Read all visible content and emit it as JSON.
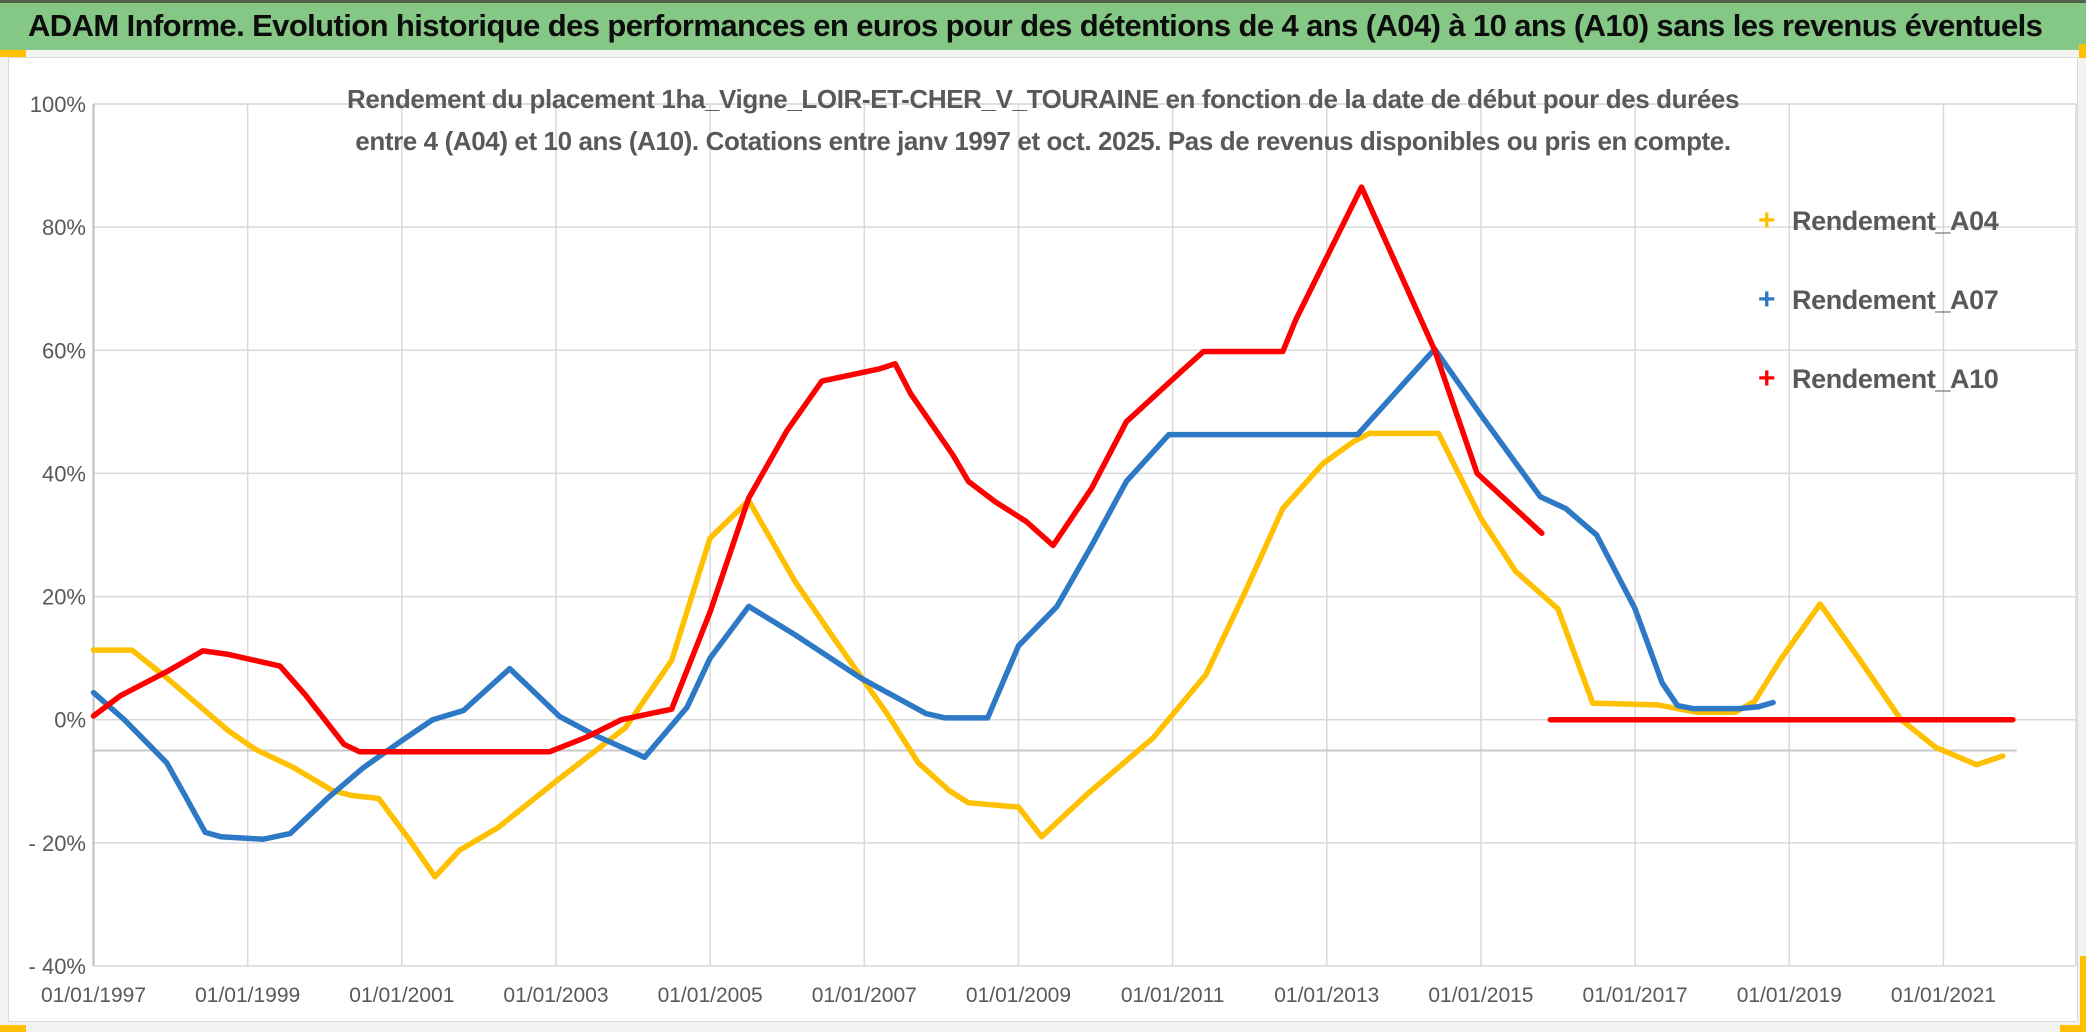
{
  "header": {
    "title": "ADAM Informe. Evolution historique des performances en euros pour des détentions de 4 ans (A04) à 10 ans (A10) sans les revenus éventuels"
  },
  "chart": {
    "title_line1": "Rendement du placement 1ha_Vigne_LOIR-ET-CHER_V_TOURAINE en fonction de la date de début pour des durées",
    "title_line2": "entre 4 (A04) et 10 ans (A10). Cotations entre janv 1997 et oct. 2025. Pas de revenus disponibles ou pris en compte."
  },
  "colors": {
    "header_bg": "#85c785",
    "accent_orange": "#ffc000",
    "grid": "#d9d9d9",
    "axis_line": "#bfbfbf",
    "baseline_extra": "#c9c9c9",
    "axis_text": "#595959",
    "title_text": "#595959",
    "a04": "#ffc000",
    "a07": "#2e79c6",
    "a10": "#ff0000"
  },
  "chart_data": {
    "type": "line",
    "title": "Rendement du placement 1ha_Vigne_LOIR-ET-CHER_V_TOURAINE en fonction de la date de début pour des durées entre 4 (A04) et 10 ans (A10). Cotations entre janv 1997 et oct. 2025. Pas de revenus disponibles ou pris en compte.",
    "xlabel": "",
    "ylabel": "",
    "grid": true,
    "legend_position": "right",
    "x_axis": {
      "range": [
        1997,
        2022.72
      ],
      "tick_years": [
        1997,
        1999,
        2001,
        2003,
        2005,
        2007,
        2009,
        2011,
        2013,
        2015,
        2017,
        2019,
        2021
      ],
      "tick_labels": [
        "01/01/1997",
        "01/01/1999",
        "01/01/2001",
        "01/01/2003",
        "01/01/2005",
        "01/01/2007",
        "01/01/2009",
        "01/01/2011",
        "01/01/2013",
        "01/01/2015",
        "01/01/2017",
        "01/01/2019",
        "01/01/2021"
      ]
    },
    "y_axis": {
      "range": [
        -40,
        100
      ],
      "tick_values": [
        100,
        80,
        60,
        40,
        20,
        0,
        -20,
        -40
      ],
      "tick_labels": [
        "100%",
        "80%",
        "60%",
        "40%",
        "20%",
        "0%",
        "- 20%",
        "- 40%"
      ],
      "extra_line_at": -5
    },
    "legend": [
      "Rendement_A04",
      "Rendement_A07",
      "Rendement_A10"
    ],
    "series": [
      {
        "name": "Rendement_A04",
        "color_key": "a04",
        "marker": "+",
        "points": [
          [
            1997.0,
            11.3
          ],
          [
            1997.5,
            11.3
          ],
          [
            1997.95,
            6.8
          ],
          [
            1998.35,
            2.5
          ],
          [
            1998.75,
            -1.8
          ],
          [
            1999.1,
            -4.8
          ],
          [
            1999.6,
            -7.8
          ],
          [
            2000.1,
            -11.5
          ],
          [
            2000.35,
            -12.3
          ],
          [
            2000.7,
            -12.8
          ],
          [
            2001.1,
            -19.5
          ],
          [
            2001.43,
            -25.5
          ],
          [
            2001.75,
            -21.2
          ],
          [
            2002.25,
            -17.5
          ],
          [
            2003.0,
            -10.0
          ],
          [
            2003.9,
            -1.3
          ],
          [
            2004.5,
            9.6
          ],
          [
            2005.0,
            29.5
          ],
          [
            2005.5,
            35.6
          ],
          [
            2006.1,
            22.5
          ],
          [
            2006.6,
            13.3
          ],
          [
            2007.3,
            0.9
          ],
          [
            2007.7,
            -7.0
          ],
          [
            2008.1,
            -11.5
          ],
          [
            2008.35,
            -13.5
          ],
          [
            2009.0,
            -14.2
          ],
          [
            2009.3,
            -19.0
          ],
          [
            2009.9,
            -12.0
          ],
          [
            2010.75,
            -2.9
          ],
          [
            2011.43,
            7.3
          ],
          [
            2011.95,
            21.0
          ],
          [
            2012.43,
            34.3
          ],
          [
            2012.95,
            41.6
          ],
          [
            2013.35,
            45.2
          ],
          [
            2013.55,
            46.5
          ],
          [
            2014.45,
            46.5
          ],
          [
            2015.0,
            32.7
          ],
          [
            2015.45,
            24.1
          ],
          [
            2016.0,
            18.0
          ],
          [
            2016.45,
            2.7
          ],
          [
            2017.3,
            2.4
          ],
          [
            2017.8,
            1.2
          ],
          [
            2018.3,
            1.2
          ],
          [
            2018.55,
            3.0
          ],
          [
            2018.9,
            10.0
          ],
          [
            2019.4,
            18.8
          ],
          [
            2019.9,
            10.0
          ],
          [
            2020.45,
            0.0
          ],
          [
            2020.9,
            -4.5
          ],
          [
            2021.43,
            -7.3
          ],
          [
            2021.77,
            -5.9
          ]
        ]
      },
      {
        "name": "Rendement_A07",
        "color_key": "a07",
        "marker": "+",
        "points": [
          [
            1997.0,
            4.4
          ],
          [
            1997.4,
            0.0
          ],
          [
            1997.95,
            -7.0
          ],
          [
            1998.2,
            -12.6
          ],
          [
            1998.45,
            -18.3
          ],
          [
            1998.65,
            -19.0
          ],
          [
            1999.2,
            -19.4
          ],
          [
            1999.55,
            -18.5
          ],
          [
            2000.05,
            -12.6
          ],
          [
            2000.5,
            -7.8
          ],
          [
            2001.0,
            -3.4
          ],
          [
            2001.4,
            0.0
          ],
          [
            2001.8,
            1.5
          ],
          [
            2002.4,
            8.3
          ],
          [
            2003.05,
            0.5
          ],
          [
            2003.5,
            -2.5
          ],
          [
            2004.15,
            -6.1
          ],
          [
            2004.7,
            2.0
          ],
          [
            2005.0,
            10.0
          ],
          [
            2005.5,
            18.4
          ],
          [
            2006.1,
            13.8
          ],
          [
            2006.95,
            6.8
          ],
          [
            2007.8,
            1.0
          ],
          [
            2008.05,
            0.3
          ],
          [
            2008.6,
            0.3
          ],
          [
            2009.0,
            12.0
          ],
          [
            2009.5,
            18.4
          ],
          [
            2009.95,
            28.3
          ],
          [
            2010.4,
            38.7
          ],
          [
            2010.95,
            46.3
          ],
          [
            2013.4,
            46.3
          ],
          [
            2014.4,
            60.2
          ],
          [
            2015.0,
            49.5
          ],
          [
            2015.77,
            36.2
          ],
          [
            2016.1,
            34.3
          ],
          [
            2016.5,
            30.0
          ],
          [
            2017.0,
            18.0
          ],
          [
            2017.35,
            6.0
          ],
          [
            2017.55,
            2.3
          ],
          [
            2017.75,
            1.8
          ],
          [
            2018.35,
            1.8
          ],
          [
            2018.6,
            2.1
          ],
          [
            2018.79,
            2.8
          ]
        ]
      },
      {
        "name": "Rendement_A10",
        "color_key": "a10",
        "marker": "+",
        "points": [
          [
            1997.0,
            0.6
          ],
          [
            1997.35,
            3.9
          ],
          [
            1997.95,
            7.8
          ],
          [
            1998.42,
            11.2
          ],
          [
            1998.75,
            10.6
          ],
          [
            1999.42,
            8.7
          ],
          [
            1999.75,
            4.0
          ],
          [
            2000.25,
            -4.0
          ],
          [
            2000.45,
            -5.2
          ],
          [
            2002.92,
            -5.2
          ],
          [
            2003.4,
            -2.8
          ],
          [
            2003.85,
            0.0
          ],
          [
            2004.5,
            1.7
          ],
          [
            2005.0,
            17.5
          ],
          [
            2005.5,
            36.0
          ],
          [
            2006.0,
            47.0
          ],
          [
            2006.45,
            55.0
          ],
          [
            2007.2,
            57.0
          ],
          [
            2007.4,
            57.8
          ],
          [
            2007.6,
            53.0
          ],
          [
            2008.15,
            43.0
          ],
          [
            2008.35,
            38.7
          ],
          [
            2008.7,
            35.4
          ],
          [
            2009.1,
            32.2
          ],
          [
            2009.45,
            28.3
          ],
          [
            2009.95,
            37.6
          ],
          [
            2010.4,
            48.4
          ],
          [
            2011.15,
            57.0
          ],
          [
            2011.4,
            59.8
          ],
          [
            2012.43,
            59.8
          ],
          [
            2012.6,
            65.0
          ],
          [
            2013.45,
            86.5
          ],
          [
            2014.4,
            60.0
          ],
          [
            2014.95,
            40.0
          ],
          [
            2015.79,
            30.3
          ],
          null,
          [
            2015.9,
            0.0
          ],
          [
            2021.9,
            0.0
          ]
        ]
      }
    ]
  }
}
